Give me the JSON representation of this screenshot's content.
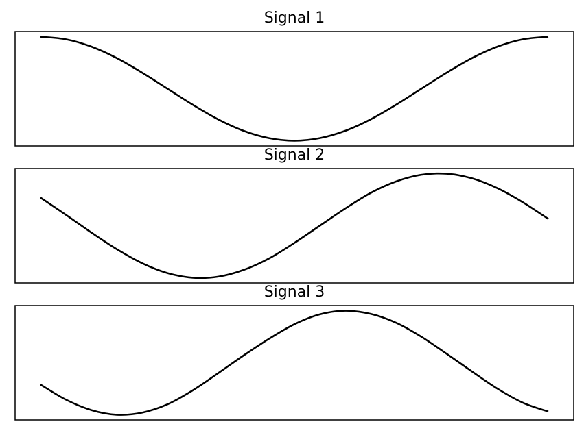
{
  "chart_data": [
    {
      "type": "line",
      "title": "Signal 1",
      "xlabel": "",
      "ylabel": "",
      "xlim": [
        -0.05,
        1.05
      ],
      "ylim": [
        -1.1,
        1.1
      ],
      "grid": false,
      "ticks_visible": false,
      "x": [
        0.0,
        0.05,
        0.1,
        0.15,
        0.2,
        0.25,
        0.3,
        0.35,
        0.4,
        0.45,
        0.5,
        0.55,
        0.6,
        0.65,
        0.7,
        0.75,
        0.8,
        0.85,
        0.9,
        0.95,
        1.0
      ],
      "series": [
        {
          "color": "#000000",
          "values": [
            1.0,
            0.95,
            0.81,
            0.59,
            0.31,
            0.0,
            -0.31,
            -0.59,
            -0.81,
            -0.95,
            -1.0,
            -0.95,
            -0.81,
            -0.59,
            -0.31,
            0.0,
            0.31,
            0.59,
            0.81,
            0.95,
            1.0
          ]
        }
      ]
    },
    {
      "type": "line",
      "title": "Signal 2",
      "xlabel": "",
      "ylabel": "",
      "xlim": [
        -0.05,
        1.05
      ],
      "ylim": [
        -1.1,
        1.1
      ],
      "grid": false,
      "ticks_visible": false,
      "x": [
        0.0,
        0.05,
        0.1,
        0.15,
        0.2,
        0.25,
        0.3,
        0.35,
        0.4,
        0.45,
        0.5,
        0.55,
        0.6,
        0.65,
        0.7,
        0.75,
        0.8,
        0.85,
        0.9,
        0.95,
        1.0
      ],
      "series": [
        {
          "color": "#000000",
          "values": [
            0.54,
            0.21,
            -0.13,
            -0.45,
            -0.72,
            -0.91,
            -1.0,
            -0.98,
            -0.85,
            -0.63,
            -0.33,
            0.0,
            0.33,
            0.63,
            0.85,
            0.98,
            1.0,
            0.91,
            0.72,
            0.45,
            0.13
          ]
        }
      ]
    },
    {
      "type": "line",
      "title": "Signal 3",
      "xlabel": "",
      "ylabel": "",
      "xlim": [
        -0.05,
        1.05
      ],
      "ylim": [
        -1.1,
        1.1
      ],
      "grid": false,
      "ticks_visible": false,
      "x": [
        0.0,
        0.05,
        0.1,
        0.15,
        0.2,
        0.25,
        0.3,
        0.35,
        0.4,
        0.45,
        0.5,
        0.55,
        0.6,
        0.65,
        0.7,
        0.75,
        0.8,
        0.85,
        0.9,
        0.95,
        1.0
      ],
      "series": [
        {
          "color": "#000000",
          "values": [
            -0.42,
            -0.71,
            -0.91,
            -1.0,
            -0.96,
            -0.8,
            -0.53,
            -0.2,
            0.14,
            0.46,
            0.74,
            0.93,
            1.0,
            0.94,
            0.77,
            0.5,
            0.17,
            -0.17,
            -0.5,
            -0.77,
            -0.94
          ]
        }
      ]
    }
  ]
}
